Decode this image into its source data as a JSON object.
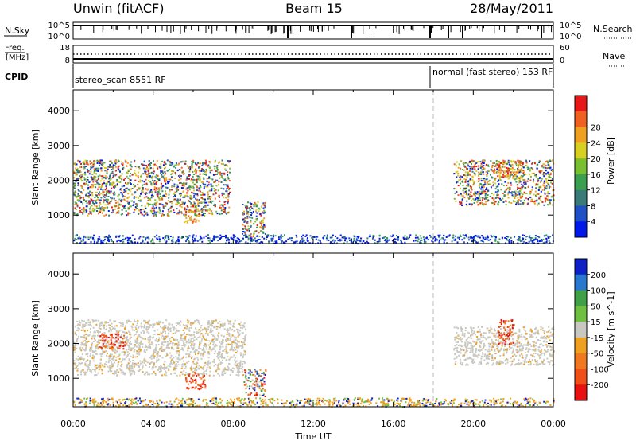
{
  "header": {
    "station": "Unwin (fitACF)",
    "beam": "Beam 15",
    "date": "28/May/2011"
  },
  "status_strip": {
    "nsky_label": "N.Sky",
    "nsearch_label": "N.Search",
    "freq_label_1": "Freq.",
    "freq_label_2": "[MHz]",
    "nave_label": "Nave",
    "cpid_label": "CPID",
    "nsky_ticks": [
      "10^5",
      "10^0"
    ],
    "nsearch_ticks": [
      "10^5",
      "10^0"
    ],
    "freq_ticks": [
      "18",
      "8"
    ],
    "nave_ticks": [
      "60",
      "0"
    ],
    "cpid_segments": [
      {
        "label": "stereo_scan 8551 RF",
        "start_hour": 0
      },
      {
        "label": "normal (fast stereo) 153 RF",
        "start_hour": 18
      }
    ]
  },
  "chart_data": [
    {
      "type": "heatmap",
      "title": "",
      "xlabel": "Time UT",
      "ylabel": "Slant Range [km]",
      "xlim_hours": [
        0,
        24
      ],
      "ylim": [
        180,
        4600
      ],
      "x_ticks": [
        "00:00",
        "04:00",
        "08:00",
        "12:00",
        "16:00",
        "20:00",
        "00:00"
      ],
      "y_ticks": [
        1000,
        2000,
        3000,
        4000
      ],
      "colorbar": {
        "label": "Power [dB]",
        "ticks": [
          4,
          8,
          12,
          16,
          20,
          24,
          28
        ],
        "colors": [
          "#0018e8",
          "#2050c8",
          "#3a7a78",
          "#3aa050",
          "#78c030",
          "#d8d020",
          "#f0a020",
          "#f06020",
          "#e81818"
        ]
      },
      "echo_bands": [
        {
          "t0": 0.0,
          "t1": 7.8,
          "r0": 1000,
          "r1": 2600,
          "level": "medium-high"
        },
        {
          "t0": 5.5,
          "t1": 6.3,
          "r0": 800,
          "r1": 1300,
          "level": "high"
        },
        {
          "t0": 8.4,
          "t1": 9.6,
          "r0": 400,
          "r1": 1400,
          "level": "medium"
        },
        {
          "t0": 19.0,
          "t1": 24.0,
          "r0": 1300,
          "r1": 2600,
          "level": "medium-high"
        },
        {
          "t0": 21.0,
          "t1": 22.5,
          "r0": 2100,
          "r1": 2600,
          "level": "high"
        },
        {
          "t0": 0.0,
          "t1": 24.0,
          "r0": 200,
          "r1": 450,
          "level": "low"
        }
      ]
    },
    {
      "type": "heatmap",
      "title": "",
      "xlabel": "Time UT",
      "ylabel": "Slant Range [km]",
      "xlim_hours": [
        0,
        24
      ],
      "ylim": [
        180,
        4600
      ],
      "x_ticks": [
        "00:00",
        "04:00",
        "08:00",
        "12:00",
        "16:00",
        "20:00",
        "00:00"
      ],
      "y_ticks": [
        1000,
        2000,
        3000,
        4000
      ],
      "colorbar": {
        "label": "Velocity [m s^-1]",
        "ticks": [
          200,
          100,
          50,
          15,
          -15,
          -50,
          -100,
          -200
        ],
        "colors": [
          "#1020c8",
          "#2878d0",
          "#40a048",
          "#70c040",
          "#c8c8c0",
          "#f0a020",
          "#f07820",
          "#f05018",
          "#e81010"
        ]
      },
      "echo_bands": [
        {
          "t0": 0.0,
          "t1": 8.6,
          "r0": 1100,
          "r1": 2700,
          "level": "ground"
        },
        {
          "t0": 1.3,
          "t1": 2.6,
          "r0": 1850,
          "r1": 2300,
          "level": "negative"
        },
        {
          "t0": 5.6,
          "t1": 6.6,
          "r0": 700,
          "r1": 1200,
          "level": "negative"
        },
        {
          "t0": 8.5,
          "t1": 9.6,
          "r0": 500,
          "r1": 1300,
          "level": "mixed"
        },
        {
          "t0": 19.0,
          "t1": 24.0,
          "r0": 1400,
          "r1": 2500,
          "level": "ground"
        },
        {
          "t0": 21.2,
          "t1": 22.0,
          "r0": 2000,
          "r1": 2700,
          "level": "negative"
        },
        {
          "t0": 0.0,
          "t1": 24.0,
          "r0": 200,
          "r1": 450,
          "level": "negative-low"
        }
      ]
    }
  ]
}
